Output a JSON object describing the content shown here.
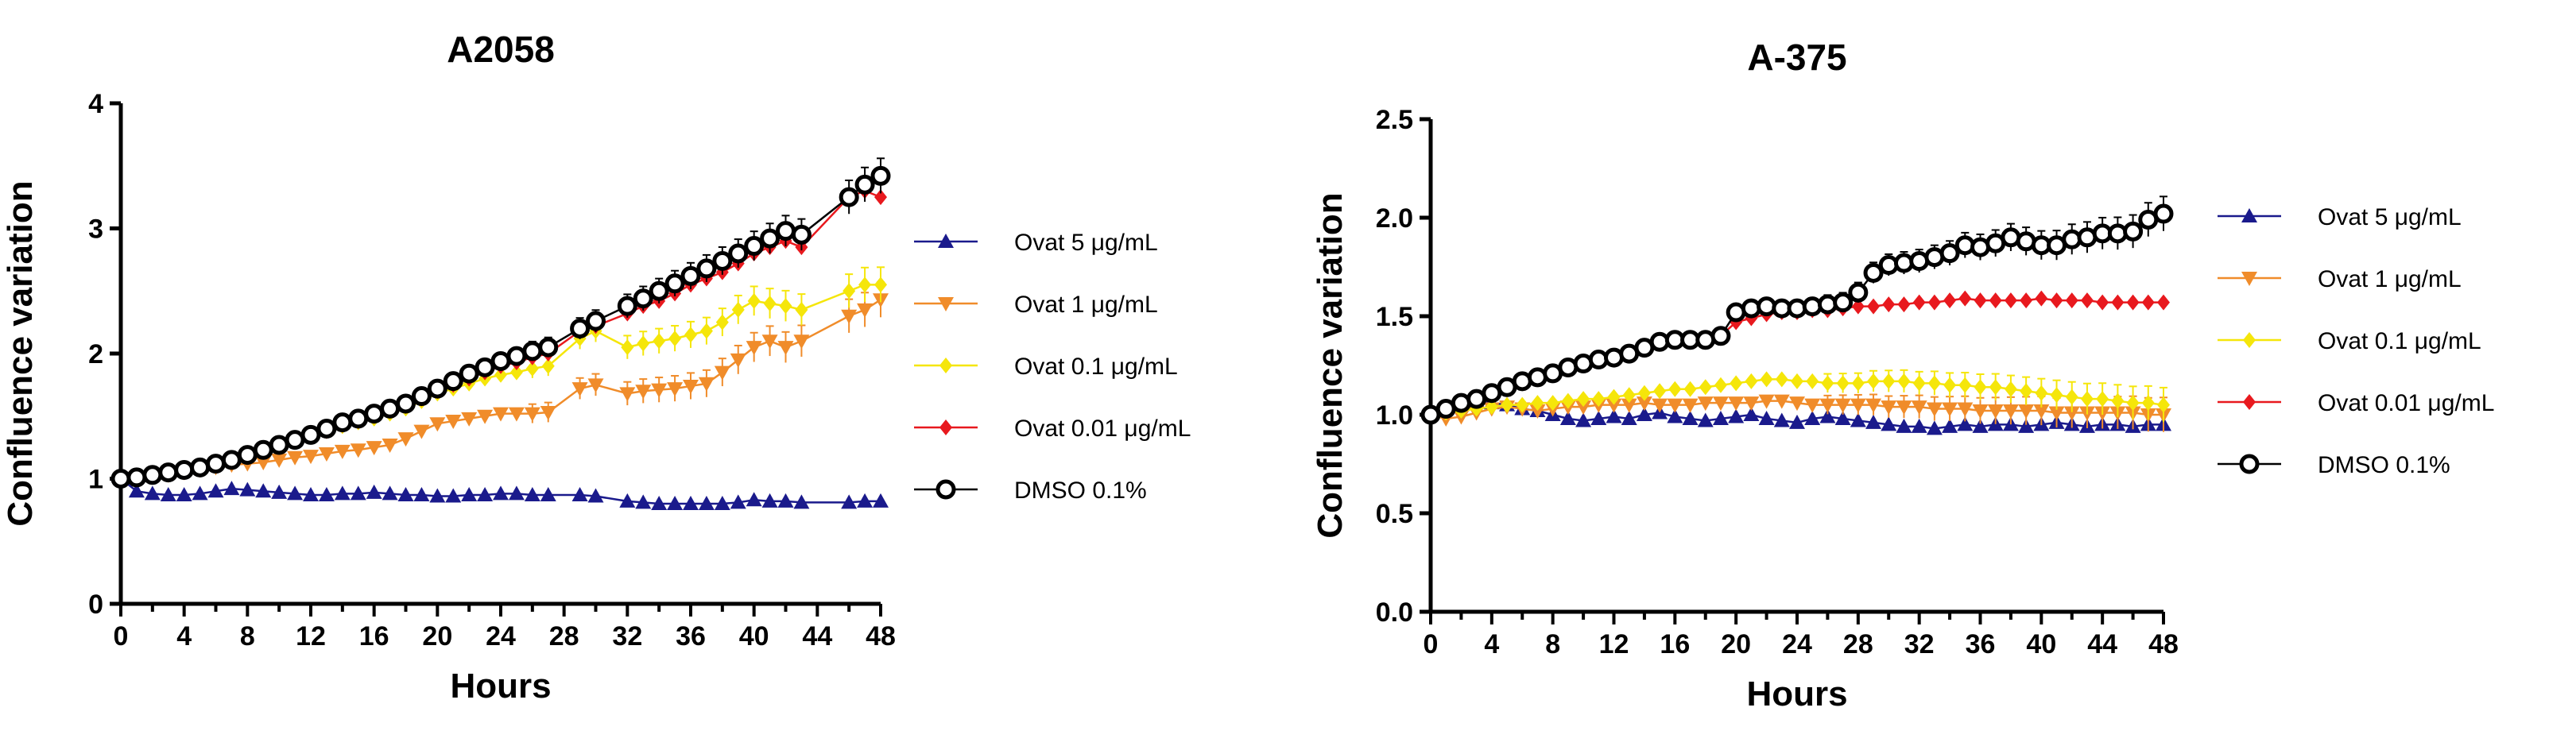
{
  "chart_data": [
    {
      "type": "line",
      "title": "A2058",
      "xlabel": "Hours",
      "ylabel": "Confluence variation",
      "xlim": [
        0,
        48
      ],
      "ylim": [
        0,
        4
      ],
      "xticks": [
        "0",
        "4",
        "8",
        "12",
        "16",
        "20",
        "24",
        "28",
        "32",
        "36",
        "40",
        "44",
        "48"
      ],
      "yticks": [
        "0",
        "1",
        "2",
        "3",
        "4"
      ],
      "series": [
        {
          "name": "Ovat 5 μg/mL",
          "color": "#1a1a8c",
          "marker": "triangle-up",
          "x": [
            0,
            1,
            2,
            3,
            4,
            5,
            6,
            7,
            8,
            9,
            10,
            11,
            12,
            13,
            14,
            15,
            16,
            17,
            18,
            19,
            20,
            21,
            22,
            23,
            24,
            25,
            26,
            27,
            29,
            30,
            32,
            33,
            34,
            35,
            36,
            37,
            38,
            39,
            40,
            41,
            42,
            43,
            46,
            47,
            48
          ],
          "y": [
            1.0,
            0.9,
            0.88,
            0.87,
            0.87,
            0.88,
            0.9,
            0.92,
            0.91,
            0.9,
            0.89,
            0.88,
            0.87,
            0.87,
            0.88,
            0.88,
            0.89,
            0.88,
            0.87,
            0.87,
            0.86,
            0.86,
            0.87,
            0.87,
            0.88,
            0.88,
            0.87,
            0.87,
            0.87,
            0.86,
            0.82,
            0.81,
            0.8,
            0.8,
            0.8,
            0.8,
            0.8,
            0.81,
            0.83,
            0.82,
            0.82,
            0.81,
            0.81,
            0.82,
            0.82
          ]
        },
        {
          "name": "Ovat 1 μg/mL",
          "color": "#f08c2a",
          "marker": "triangle-down",
          "x": [
            0,
            1,
            2,
            3,
            4,
            5,
            6,
            7,
            8,
            9,
            10,
            11,
            12,
            13,
            14,
            15,
            16,
            17,
            18,
            19,
            20,
            21,
            22,
            23,
            24,
            25,
            26,
            27,
            29,
            30,
            32,
            33,
            34,
            35,
            36,
            37,
            38,
            39,
            40,
            41,
            42,
            43,
            46,
            47,
            48
          ],
          "y": [
            1.0,
            1.01,
            1.02,
            1.03,
            1.05,
            1.07,
            1.09,
            1.11,
            1.12,
            1.13,
            1.15,
            1.17,
            1.18,
            1.2,
            1.22,
            1.23,
            1.25,
            1.27,
            1.32,
            1.38,
            1.44,
            1.46,
            1.48,
            1.5,
            1.52,
            1.52,
            1.52,
            1.53,
            1.72,
            1.75,
            1.68,
            1.7,
            1.71,
            1.72,
            1.74,
            1.76,
            1.85,
            1.95,
            2.05,
            2.1,
            2.05,
            2.1,
            2.3,
            2.35,
            2.43
          ]
        },
        {
          "name": "Ovat 0.1 μg/mL",
          "color": "#f5e60a",
          "marker": "diamond",
          "x": [
            0,
            1,
            2,
            3,
            4,
            5,
            6,
            7,
            8,
            9,
            10,
            11,
            12,
            13,
            14,
            15,
            16,
            17,
            18,
            19,
            20,
            21,
            22,
            23,
            24,
            25,
            26,
            27,
            29,
            30,
            32,
            33,
            34,
            35,
            36,
            37,
            38,
            39,
            40,
            41,
            42,
            43,
            46,
            47,
            48
          ],
          "y": [
            1.0,
            1.02,
            1.03,
            1.05,
            1.07,
            1.09,
            1.12,
            1.15,
            1.18,
            1.22,
            1.26,
            1.3,
            1.34,
            1.38,
            1.42,
            1.45,
            1.48,
            1.52,
            1.56,
            1.62,
            1.68,
            1.72,
            1.76,
            1.8,
            1.83,
            1.85,
            1.88,
            1.9,
            2.12,
            2.18,
            2.05,
            2.08,
            2.1,
            2.12,
            2.15,
            2.18,
            2.25,
            2.35,
            2.42,
            2.4,
            2.38,
            2.35,
            2.5,
            2.55,
            2.55
          ]
        },
        {
          "name": "Ovat 0.01 μg/mL",
          "color": "#e8191e",
          "marker": "diamond",
          "x": [
            0,
            1,
            2,
            3,
            4,
            5,
            6,
            7,
            8,
            9,
            10,
            11,
            12,
            13,
            14,
            15,
            16,
            17,
            18,
            19,
            20,
            21,
            22,
            23,
            24,
            25,
            26,
            27,
            29,
            30,
            32,
            33,
            34,
            35,
            36,
            37,
            38,
            39,
            40,
            41,
            42,
            43,
            46,
            47,
            48
          ],
          "y": [
            1.0,
            1.02,
            1.03,
            1.05,
            1.07,
            1.09,
            1.12,
            1.15,
            1.18,
            1.22,
            1.26,
            1.3,
            1.34,
            1.38,
            1.43,
            1.46,
            1.5,
            1.54,
            1.58,
            1.64,
            1.7,
            1.75,
            1.8,
            1.85,
            1.9,
            1.93,
            1.97,
            2.0,
            2.18,
            2.22,
            2.32,
            2.38,
            2.42,
            2.48,
            2.55,
            2.6,
            2.65,
            2.72,
            2.8,
            2.85,
            2.9,
            2.85,
            3.25,
            3.3,
            3.25
          ]
        },
        {
          "name": "DMSO 0.1%",
          "color": "#000000",
          "marker": "open-circle",
          "x": [
            0,
            1,
            2,
            3,
            4,
            5,
            6,
            7,
            8,
            9,
            10,
            11,
            12,
            13,
            14,
            15,
            16,
            17,
            18,
            19,
            20,
            21,
            22,
            23,
            24,
            25,
            26,
            27,
            29,
            30,
            32,
            33,
            34,
            35,
            36,
            37,
            38,
            39,
            40,
            41,
            42,
            43,
            46,
            47,
            48
          ],
          "y": [
            1.0,
            1.01,
            1.03,
            1.05,
            1.07,
            1.09,
            1.12,
            1.15,
            1.19,
            1.23,
            1.27,
            1.31,
            1.35,
            1.4,
            1.45,
            1.48,
            1.52,
            1.56,
            1.6,
            1.66,
            1.72,
            1.78,
            1.84,
            1.89,
            1.94,
            1.98,
            2.02,
            2.05,
            2.2,
            2.26,
            2.38,
            2.44,
            2.5,
            2.56,
            2.62,
            2.68,
            2.74,
            2.8,
            2.86,
            2.92,
            2.98,
            2.95,
            3.25,
            3.35,
            3.42
          ]
        }
      ]
    },
    {
      "type": "line",
      "title": "A-375",
      "xlabel": "Hours",
      "ylabel": "Confluence variation",
      "xlim": [
        0,
        48
      ],
      "ylim": [
        0,
        2.5
      ],
      "xticks": [
        "0",
        "4",
        "8",
        "12",
        "16",
        "20",
        "24",
        "28",
        "32",
        "36",
        "40",
        "44",
        "48"
      ],
      "yticks": [
        "0.0",
        "0.5",
        "1.0",
        "1.5",
        "2.0",
        "2.5"
      ],
      "series": [
        {
          "name": "Ovat 5 μg/mL",
          "color": "#1a1a8c",
          "marker": "triangle-up",
          "x": [
            0,
            1,
            2,
            3,
            4,
            5,
            6,
            7,
            8,
            9,
            10,
            11,
            12,
            13,
            14,
            15,
            16,
            17,
            18,
            19,
            20,
            21,
            22,
            23,
            24,
            25,
            26,
            27,
            28,
            29,
            30,
            31,
            32,
            33,
            34,
            35,
            36,
            37,
            38,
            39,
            40,
            41,
            42,
            43,
            44,
            45,
            46,
            47,
            48
          ],
          "y": [
            1.0,
            1.03,
            1.06,
            1.07,
            1.06,
            1.05,
            1.03,
            1.02,
            1.0,
            0.98,
            0.97,
            0.98,
            0.99,
            0.98,
            1.0,
            1.01,
            0.99,
            0.98,
            0.97,
            0.98,
            0.99,
            1.0,
            0.98,
            0.97,
            0.96,
            0.98,
            0.99,
            0.98,
            0.97,
            0.96,
            0.95,
            0.94,
            0.94,
            0.93,
            0.94,
            0.95,
            0.94,
            0.95,
            0.95,
            0.94,
            0.95,
            0.96,
            0.95,
            0.94,
            0.95,
            0.95,
            0.94,
            0.95,
            0.95
          ]
        },
        {
          "name": "Ovat 1 μg/mL",
          "color": "#f08c2a",
          "marker": "triangle-down",
          "x": [
            0,
            1,
            2,
            3,
            4,
            5,
            6,
            7,
            8,
            9,
            10,
            11,
            12,
            13,
            14,
            15,
            16,
            17,
            18,
            19,
            20,
            21,
            22,
            23,
            24,
            25,
            26,
            27,
            28,
            29,
            30,
            31,
            32,
            33,
            34,
            35,
            36,
            37,
            38,
            39,
            40,
            41,
            42,
            43,
            44,
            45,
            46,
            47,
            48
          ],
          "y": [
            1.0,
            0.98,
            0.99,
            1.01,
            1.03,
            1.04,
            1.03,
            1.02,
            1.03,
            1.04,
            1.04,
            1.05,
            1.05,
            1.05,
            1.06,
            1.05,
            1.05,
            1.05,
            1.06,
            1.06,
            1.06,
            1.06,
            1.07,
            1.07,
            1.06,
            1.05,
            1.05,
            1.05,
            1.05,
            1.05,
            1.04,
            1.04,
            1.04,
            1.03,
            1.03,
            1.03,
            1.02,
            1.02,
            1.02,
            1.02,
            1.02,
            1.01,
            1.01,
            1.01,
            1.01,
            1.01,
            1.01,
            1.0,
            1.0
          ]
        },
        {
          "name": "Ovat 0.1 μg/mL",
          "color": "#f5e60a",
          "marker": "diamond",
          "x": [
            0,
            1,
            2,
            3,
            4,
            5,
            6,
            7,
            8,
            9,
            10,
            11,
            12,
            13,
            14,
            15,
            16,
            17,
            18,
            19,
            20,
            21,
            22,
            23,
            24,
            25,
            26,
            27,
            28,
            29,
            30,
            31,
            32,
            33,
            34,
            35,
            36,
            37,
            38,
            39,
            40,
            41,
            42,
            43,
            44,
            45,
            46,
            47,
            48
          ],
          "y": [
            1.0,
            1.01,
            1.02,
            1.03,
            1.04,
            1.05,
            1.05,
            1.06,
            1.06,
            1.07,
            1.08,
            1.08,
            1.09,
            1.1,
            1.11,
            1.12,
            1.13,
            1.13,
            1.14,
            1.15,
            1.16,
            1.17,
            1.18,
            1.18,
            1.17,
            1.17,
            1.16,
            1.16,
            1.16,
            1.17,
            1.17,
            1.17,
            1.16,
            1.16,
            1.15,
            1.15,
            1.14,
            1.14,
            1.13,
            1.12,
            1.11,
            1.1,
            1.09,
            1.08,
            1.08,
            1.07,
            1.06,
            1.06,
            1.05
          ]
        },
        {
          "name": "Ovat 0.01 μg/mL",
          "color": "#e8191e",
          "marker": "diamond",
          "x": [
            0,
            1,
            2,
            3,
            4,
            5,
            6,
            7,
            8,
            9,
            10,
            11,
            12,
            13,
            14,
            15,
            16,
            17,
            18,
            19,
            20,
            21,
            22,
            23,
            24,
            25,
            26,
            27,
            28,
            29,
            30,
            31,
            32,
            33,
            34,
            35,
            36,
            37,
            38,
            39,
            40,
            41,
            42,
            43,
            44,
            45,
            46,
            47,
            48
          ],
          "y": [
            1.0,
            1.03,
            1.06,
            1.08,
            1.11,
            1.14,
            1.17,
            1.19,
            1.21,
            1.23,
            1.26,
            1.28,
            1.29,
            1.31,
            1.34,
            1.36,
            1.38,
            1.38,
            1.38,
            1.4,
            1.47,
            1.49,
            1.51,
            1.52,
            1.52,
            1.53,
            1.53,
            1.54,
            1.55,
            1.55,
            1.56,
            1.56,
            1.57,
            1.57,
            1.58,
            1.59,
            1.58,
            1.58,
            1.58,
            1.58,
            1.59,
            1.58,
            1.58,
            1.58,
            1.57,
            1.57,
            1.57,
            1.57,
            1.57
          ]
        },
        {
          "name": "DMSO 0.1%",
          "color": "#000000",
          "marker": "open-circle",
          "x": [
            0,
            1,
            2,
            3,
            4,
            5,
            6,
            7,
            8,
            9,
            10,
            11,
            12,
            13,
            14,
            15,
            16,
            17,
            18,
            19,
            20,
            21,
            22,
            23,
            24,
            25,
            26,
            27,
            28,
            29,
            30,
            31,
            32,
            33,
            34,
            35,
            36,
            37,
            38,
            39,
            40,
            41,
            42,
            43,
            44,
            45,
            46,
            47,
            48
          ],
          "y": [
            1.0,
            1.03,
            1.06,
            1.08,
            1.11,
            1.14,
            1.17,
            1.19,
            1.21,
            1.24,
            1.26,
            1.28,
            1.29,
            1.31,
            1.34,
            1.37,
            1.38,
            1.38,
            1.38,
            1.4,
            1.52,
            1.54,
            1.55,
            1.54,
            1.54,
            1.55,
            1.56,
            1.57,
            1.62,
            1.72,
            1.76,
            1.77,
            1.78,
            1.8,
            1.82,
            1.86,
            1.85,
            1.87,
            1.9,
            1.88,
            1.86,
            1.86,
            1.89,
            1.9,
            1.92,
            1.92,
            1.93,
            1.99,
            2.02
          ]
        }
      ]
    }
  ]
}
